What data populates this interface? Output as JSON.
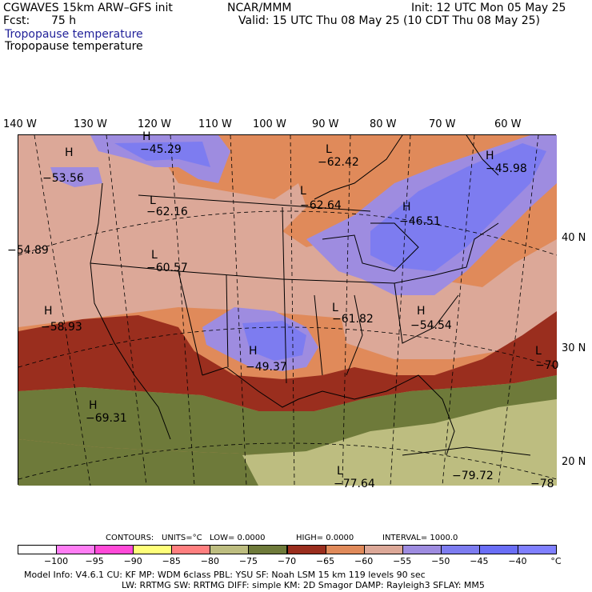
{
  "header": {
    "model": "CGWAVES 15km ARW–GFS init",
    "fcst_label": "Fcst:",
    "fcst_value": "75 h",
    "org": "NCAR/MMM",
    "init": "Init: 12 UTC Mon 05 May 25",
    "valid": "Valid: 15 UTC Thu 08 May 25 (10 CDT Thu 08 May 25)",
    "field_title_1": "Tropopause temperature",
    "field_title_2": "Tropopause temperature"
  },
  "longitude_labels": [
    "140 W",
    "130 W",
    "120 W",
    "110 W",
    "100 W",
    "90 W",
    "80 W",
    "70 W",
    "60 W"
  ],
  "latitude_labels": [
    "40 N",
    "30 N",
    "20 N"
  ],
  "pressure_labels": [
    {
      "type": "H",
      "value": "−45.29"
    },
    {
      "type": "H",
      "value": "−53.56"
    },
    {
      "type": "L",
      "value": "−62.42"
    },
    {
      "type": "H",
      "value": "−45.98"
    },
    {
      "type": "L",
      "value": "−62.64"
    },
    {
      "type": "L",
      "value": "−62.16"
    },
    {
      "type": "H",
      "value": "−46.51"
    },
    {
      "type": "L",
      "value": "−60.57"
    },
    {
      "type": "L",
      "value": "−61.82"
    },
    {
      "type": "H",
      "value": "−54.54"
    },
    {
      "type": "H",
      "value": "−58.93"
    },
    {
      "type": "H",
      "value": "−49.37"
    },
    {
      "type": "H",
      "value": "−69.31"
    },
    {
      "type": "L",
      "value": "−70"
    },
    {
      "type": "L",
      "value": "−77.64"
    },
    {
      "type": "",
      "value": "−79.72"
    },
    {
      "type": "",
      "value": "−54.89"
    },
    {
      "type": "",
      "value": "−78"
    }
  ],
  "contours": {
    "label": "CONTOURS:",
    "units": "UNITS=°C",
    "low": "LOW= 0.0000",
    "high": "HIGH= 0.0000",
    "interval": "INTERVAL= 1000.0"
  },
  "colorbar": {
    "colors": [
      "#ffffff",
      "#ff7ef4",
      "#ff4ad8",
      "#ffff7a",
      "#ff7f7f",
      "#bdbd80",
      "#6e7a3a",
      "#9a2e1e",
      "#e08a5a",
      "#dca898",
      "#9e8ce0",
      "#7d7cf0",
      "#6a6ef6",
      "#8080ff"
    ],
    "labels": [
      "−100",
      "−95",
      "−90",
      "−85",
      "−80",
      "−75",
      "−70",
      "−65",
      "−60",
      "−55",
      "−50",
      "−45",
      "−40",
      "°C"
    ]
  },
  "model_info": {
    "line1": "Model Info: V4.6.1    CU: KF       MP: WDM 6class   PBL: YSU        SF: Noah LSM     15 km   119 levels   90 sec",
    "line2": "LW: RRTMG    SW: RRTMG   DIFF: simple KM: 2D Smagor DAMP: Rayleigh3   SFLAY: MM5"
  }
}
